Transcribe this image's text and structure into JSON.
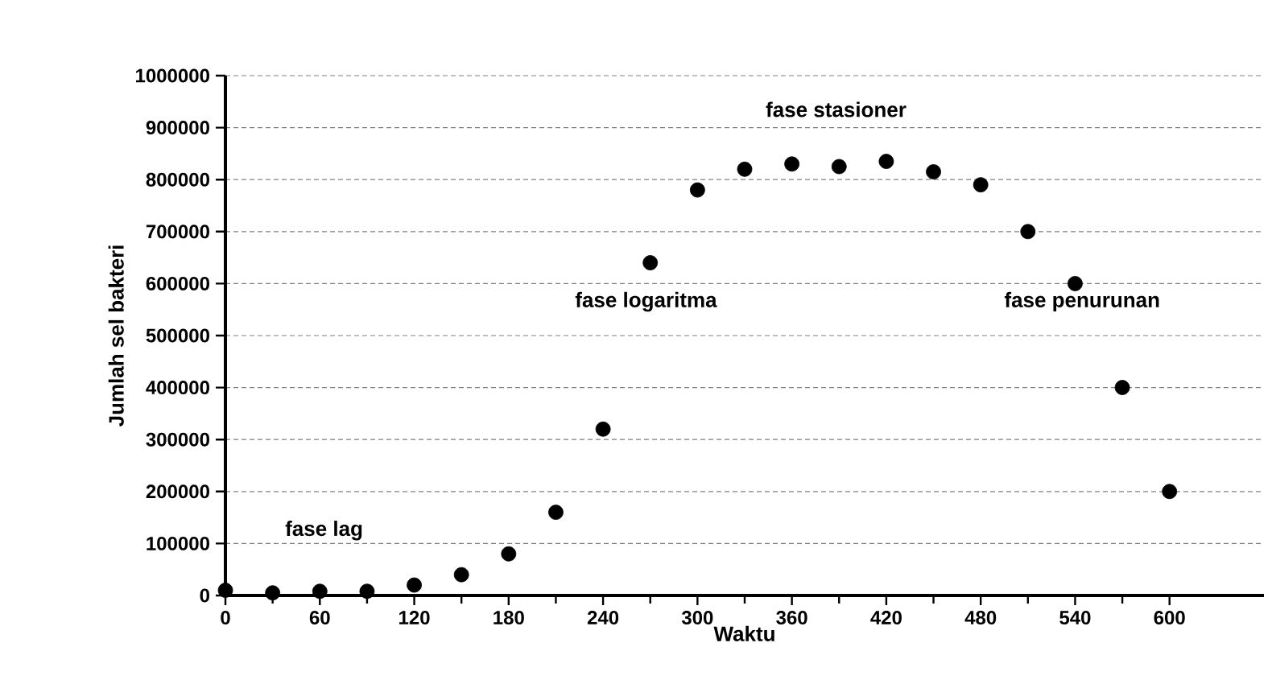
{
  "chart_data": {
    "type": "scatter",
    "xlabel": "Waktu",
    "ylabel": "Jumlah sel bakteri",
    "x": [
      0,
      30,
      60,
      90,
      120,
      150,
      180,
      210,
      240,
      270,
      300,
      330,
      360,
      390,
      420,
      450,
      480,
      510,
      540,
      570,
      600
    ],
    "values": [
      10000,
      5000,
      8000,
      8000,
      20000,
      40000,
      80000,
      160000,
      320000,
      640000,
      780000,
      820000,
      830000,
      825000,
      835000,
      815000,
      790000,
      700000,
      600000,
      400000,
      200000
    ],
    "color": "#000000",
    "marker": "circle",
    "xlim": [
      0,
      660
    ],
    "xticks": [
      0,
      60,
      120,
      180,
      240,
      300,
      360,
      420,
      480,
      540,
      600
    ],
    "ylim": [
      0,
      1000000
    ],
    "yticks": [
      0,
      100000,
      200000,
      300000,
      400000,
      500000,
      600000,
      700000,
      800000,
      900000,
      1000000
    ],
    "grid": "y",
    "annotations": [
      "fase lag",
      "fase logaritma",
      "fase stasioner",
      "fase penurunan"
    ]
  }
}
